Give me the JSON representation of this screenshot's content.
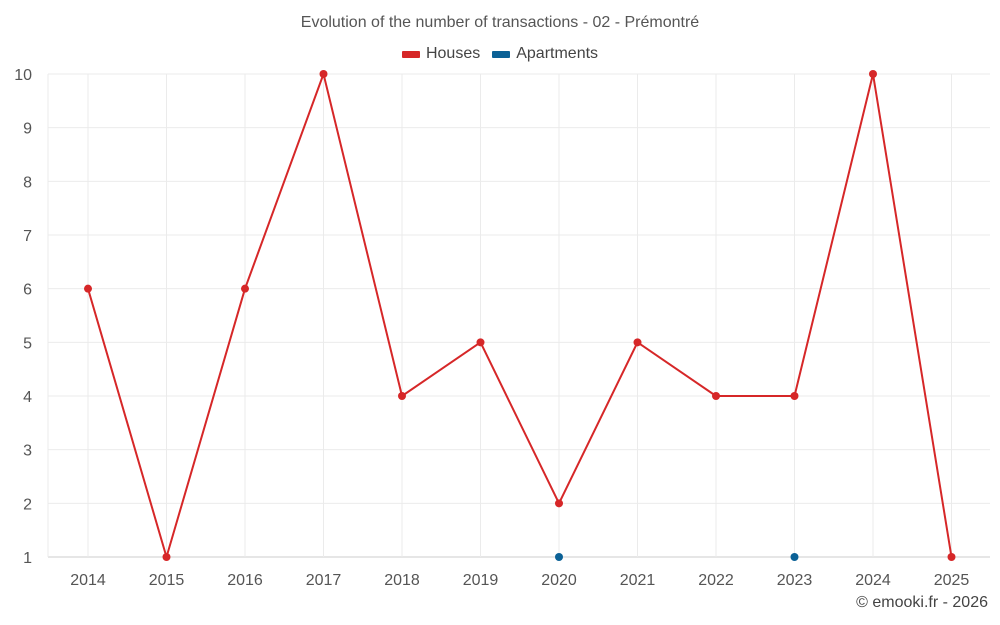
{
  "chart_data": {
    "type": "line",
    "title": "Evolution of the number of transactions - 02 - Prémontré",
    "categories": [
      "2014",
      "2015",
      "2016",
      "2017",
      "2018",
      "2019",
      "2020",
      "2021",
      "2022",
      "2023",
      "2024",
      "2025"
    ],
    "series": [
      {
        "name": "Houses",
        "color": "#d62728",
        "values": [
          6,
          1,
          6,
          10,
          4,
          5,
          2,
          5,
          4,
          4,
          10,
          1
        ]
      },
      {
        "name": "Apartments",
        "color": "#0b6196",
        "values": [
          null,
          null,
          null,
          null,
          null,
          null,
          1,
          null,
          null,
          1,
          null,
          null
        ]
      }
    ],
    "ylim": [
      1,
      10
    ],
    "yticks": [
      1,
      2,
      3,
      4,
      5,
      6,
      7,
      8,
      9,
      10
    ],
    "xlabel": "",
    "ylabel": "",
    "grid": true,
    "legend_position": "top-center"
  },
  "credit": "© emooki.fr - 2026"
}
